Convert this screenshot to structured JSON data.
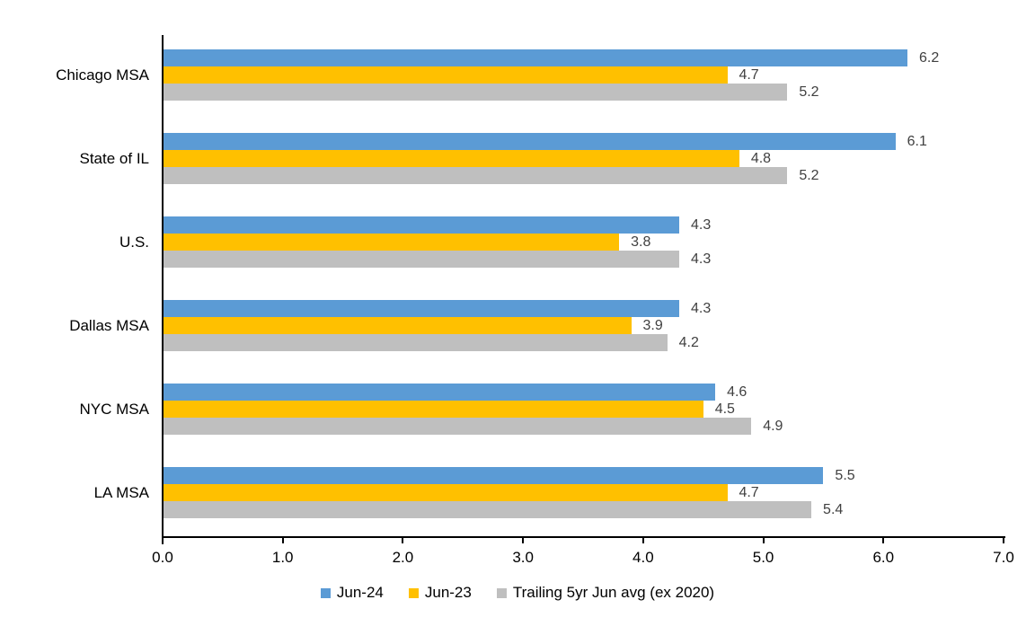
{
  "chart_data": {
    "type": "bar",
    "orientation": "horizontal",
    "title": "",
    "xlabel": "",
    "ylabel": "",
    "categories": [
      "Chicago MSA",
      "State of IL",
      "U.S.",
      "Dallas MSA",
      "NYC MSA",
      "LA MSA"
    ],
    "series": [
      {
        "name": "Jun-24",
        "color": "#5B9BD5",
        "values": [
          6.2,
          6.1,
          4.3,
          4.3,
          4.6,
          5.5
        ]
      },
      {
        "name": "Jun-23",
        "color": "#FFC000",
        "values": [
          4.7,
          4.8,
          3.8,
          3.9,
          4.5,
          4.7
        ]
      },
      {
        "name": "Trailing 5yr Jun avg (ex 2020)",
        "color": "#BFBFBF",
        "values": [
          5.2,
          5.2,
          4.3,
          4.2,
          4.9,
          5.4
        ]
      }
    ],
    "xlim": [
      0,
      7
    ],
    "x_ticks": [
      "0.0",
      "1.0",
      "2.0",
      "3.0",
      "4.0",
      "5.0",
      "6.0",
      "7.0"
    ],
    "grid": false,
    "data_labels": true,
    "data_label_color": "#404040",
    "axis_color": "#000000",
    "legend_position": "bottom"
  }
}
